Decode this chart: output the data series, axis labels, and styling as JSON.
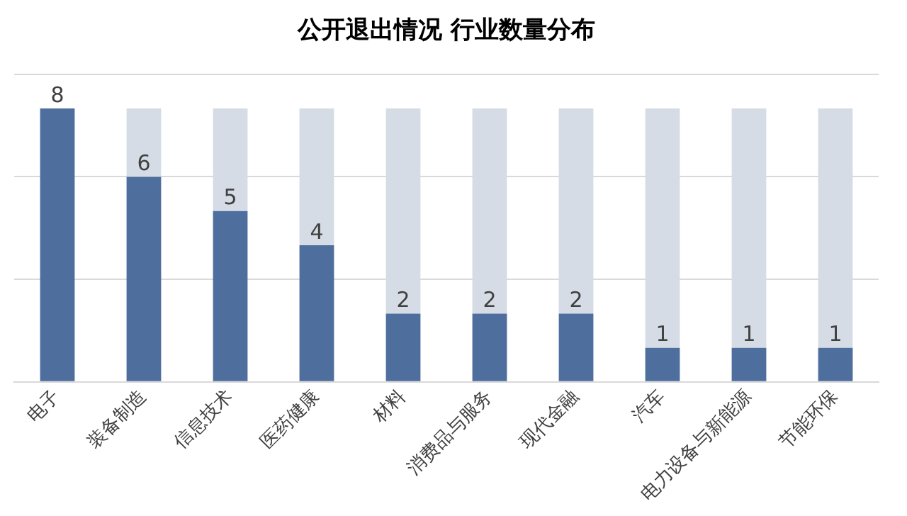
{
  "chart_data": {
    "type": "bar",
    "title": "公开退出情况 行业数量分布",
    "categories": [
      "电子",
      "装备制造",
      "信息技术",
      "医药健康",
      "材料",
      "消费品与服务",
      "现代金融",
      "汽车",
      "电力设备与新能源",
      "节能环保"
    ],
    "series": [
      {
        "color": "#4e6f9d",
        "values": [
          8,
          6,
          5,
          4,
          2,
          2,
          2,
          1,
          1,
          1
        ],
        "value_labels": [
          "8",
          "6",
          "5",
          "4",
          "2",
          "2",
          "2",
          "1",
          "1",
          "1"
        ]
      },
      {
        "color": "#d6dce5",
        "values": [
          0,
          2,
          3,
          4,
          6,
          6,
          6,
          7,
          7,
          7
        ]
      }
    ],
    "stacked": true,
    "ylim": [
      0,
      9
    ],
    "yticks": [
      0,
      3,
      6,
      9
    ],
    "grid": "y",
    "tick_labels": "x",
    "legend": false
  }
}
